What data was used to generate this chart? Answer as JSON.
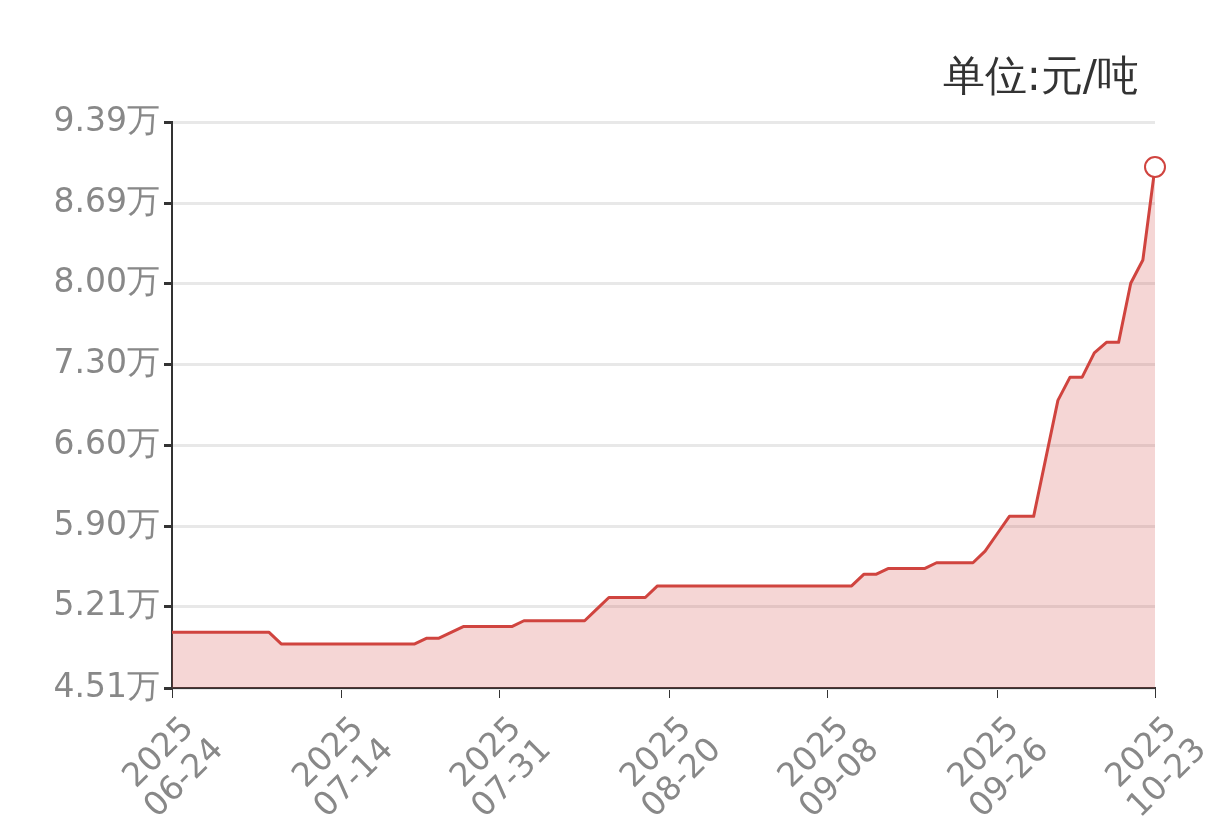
{
  "chart_data": {
    "type": "area",
    "ylabel": "单位:元/吨",
    "categories": [
      "2025\n06-24",
      null,
      null,
      null,
      null,
      null,
      null,
      null,
      null,
      null,
      null,
      null,
      null,
      null,
      "2025\n07-14",
      null,
      null,
      null,
      null,
      null,
      null,
      null,
      null,
      null,
      null,
      null,
      null,
      "2025\n07-31",
      null,
      null,
      null,
      null,
      null,
      null,
      null,
      null,
      null,
      null,
      null,
      null,
      null,
      "2025\n08-20",
      null,
      null,
      null,
      null,
      null,
      null,
      null,
      null,
      null,
      null,
      null,
      null,
      "2025\n09-08",
      null,
      null,
      null,
      null,
      null,
      null,
      null,
      null,
      null,
      null,
      null,
      null,
      null,
      "2025\n09-26",
      null,
      null,
      null,
      null,
      null,
      null,
      null,
      null,
      null,
      null,
      null,
      null,
      "2025\n10-23"
    ],
    "series": [
      {
        "color": "#d0443f",
        "values": [
          4.99,
          4.99,
          4.99,
          4.99,
          4.99,
          4.99,
          4.99,
          4.99,
          4.99,
          4.89,
          4.89,
          4.89,
          4.89,
          4.89,
          4.89,
          4.89,
          4.89,
          4.89,
          4.89,
          4.89,
          4.89,
          4.94,
          4.94,
          4.99,
          5.04,
          5.04,
          5.04,
          5.04,
          5.04,
          5.09,
          5.09,
          5.09,
          5.09,
          5.09,
          5.09,
          5.19,
          5.29,
          5.29,
          5.29,
          5.29,
          5.39,
          5.39,
          5.39,
          5.39,
          5.39,
          5.39,
          5.39,
          5.39,
          5.39,
          5.39,
          5.39,
          5.39,
          5.39,
          5.39,
          5.39,
          5.39,
          5.39,
          5.49,
          5.49,
          5.54,
          5.54,
          5.54,
          5.54,
          5.59,
          5.59,
          5.59,
          5.59,
          5.69,
          5.84,
          5.99,
          5.99,
          5.99,
          6.49,
          6.99,
          7.19,
          7.19,
          7.4,
          7.49,
          7.49,
          8.0,
          8.2,
          9.0
        ]
      }
    ],
    "ylim": [
      4.51,
      9.39
    ],
    "yticks": [
      {
        "value": 4.51,
        "label": "4.51万"
      },
      {
        "value": 5.21,
        "label": "5.21万"
      },
      {
        "value": 5.9,
        "label": "5.90万"
      },
      {
        "value": 6.6,
        "label": "6.60万"
      },
      {
        "value": 7.3,
        "label": "7.30万"
      },
      {
        "value": 8.0,
        "label": "8.00万"
      },
      {
        "value": 8.69,
        "label": "8.69万"
      },
      {
        "value": 9.39,
        "label": "9.39万"
      }
    ],
    "grid": "y"
  }
}
